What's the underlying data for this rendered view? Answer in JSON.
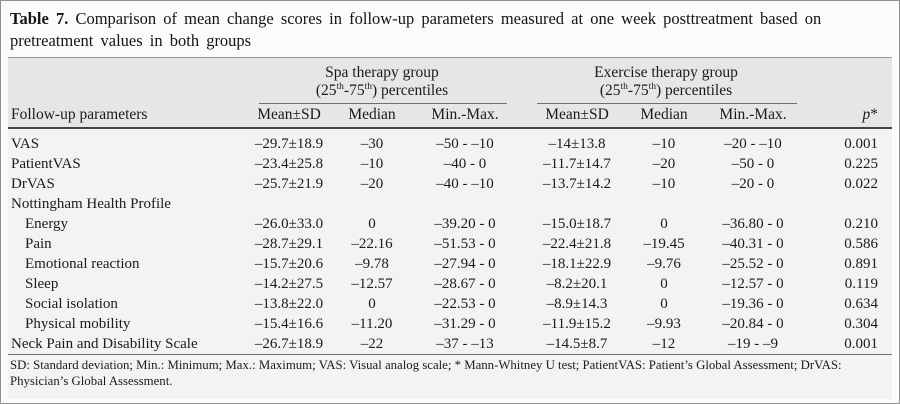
{
  "title": {
    "label": "Table 7.",
    "line1": " Comparison of mean change scores in follow-up parameters measured at one week posttreatment based on",
    "line2": "pretreatment values in both groups"
  },
  "header": {
    "row_label_column": "Follow-up parameters",
    "groups": [
      {
        "name": "Spa therapy group",
        "sub_parts": [
          "(25",
          "th",
          "-75",
          "th",
          ") percentiles"
        ]
      },
      {
        "name": "Exercise therapy group",
        "sub_parts": [
          "(25",
          "th",
          "-75",
          "th",
          ") percentiles"
        ]
      }
    ],
    "sub_columns": [
      "Mean±SD",
      "Median",
      "Min.-Max."
    ],
    "p_parts": [
      "p",
      "*"
    ]
  },
  "rows": [
    {
      "label": "VAS",
      "spa": {
        "mean_sd": "–29.7±18.9",
        "median": "–30",
        "min_max": "–50 - –10"
      },
      "ex": {
        "mean_sd": "–14±13.8",
        "median": "–10",
        "min_max": "–20 - –10"
      },
      "p": "0.001"
    },
    {
      "label": "PatientVAS",
      "spa": {
        "mean_sd": "–23.4±25.8",
        "median": "–10",
        "min_max": "–40 - 0"
      },
      "ex": {
        "mean_sd": "–11.7±14.7",
        "median": "–20",
        "min_max": "–50 - 0"
      },
      "p": "0.225"
    },
    {
      "label": "DrVAS",
      "spa": {
        "mean_sd": "–25.7±21.9",
        "median": "–20",
        "min_max": "–40 - –10"
      },
      "ex": {
        "mean_sd": "–13.7±14.2",
        "median": "–10",
        "min_max": "–20 - 0"
      },
      "p": "0.022"
    },
    {
      "label": "Nottingham Health Profile",
      "spa": {
        "mean_sd": "",
        "median": "",
        "min_max": ""
      },
      "ex": {
        "mean_sd": "",
        "median": "",
        "min_max": ""
      },
      "p": ""
    },
    {
      "label": "Energy",
      "spa": {
        "mean_sd": "–26.0±33.0",
        "median": "0",
        "min_max": "–39.20 - 0"
      },
      "ex": {
        "mean_sd": "–15.0±18.7",
        "median": "0",
        "min_max": "–36.80 - 0"
      },
      "p": "0.210"
    },
    {
      "label": "Pain",
      "spa": {
        "mean_sd": "–28.7±29.1",
        "median": "–22.16",
        "min_max": "–51.53 - 0"
      },
      "ex": {
        "mean_sd": "–22.4±21.8",
        "median": "–19.45",
        "min_max": "–40.31 - 0"
      },
      "p": "0.586"
    },
    {
      "label": "Emotional reaction",
      "spa": {
        "mean_sd": "–15.7±20.6",
        "median": "–9.78",
        "min_max": "–27.94 - 0"
      },
      "ex": {
        "mean_sd": "–18.1±22.9",
        "median": "–9.76",
        "min_max": "–25.52 - 0"
      },
      "p": "0.891"
    },
    {
      "label": "Sleep",
      "spa": {
        "mean_sd": "–14.2±27.5",
        "median": "–12.57",
        "min_max": "–28.67 - 0"
      },
      "ex": {
        "mean_sd": "–8.2±20.1",
        "median": "0",
        "min_max": "–12.57 - 0"
      },
      "p": "0.119"
    },
    {
      "label": "Social isolation",
      "spa": {
        "mean_sd": "–13.8±22.0",
        "median": "0",
        "min_max": "–22.53 - 0"
      },
      "ex": {
        "mean_sd": "–8.9±14.3",
        "median": "0",
        "min_max": "–19.36 - 0"
      },
      "p": "0.634"
    },
    {
      "label": "Physical mobility",
      "spa": {
        "mean_sd": "–15.4±16.6",
        "median": "–11.20",
        "min_max": "–31.29 - 0"
      },
      "ex": {
        "mean_sd": "–11.9±15.2",
        "median": "–9.93",
        "min_max": "–20.84 - 0"
      },
      "p": "0.304"
    },
    {
      "label": "Neck Pain and Disability Scale",
      "spa": {
        "mean_sd": "–26.7±18.9",
        "median": "–22",
        "min_max": "–37 - –13"
      },
      "ex": {
        "mean_sd": "–14.5±8.7",
        "median": "–12",
        "min_max": "–19 - –9"
      },
      "p": "0.001"
    }
  ],
  "footer": {
    "text": "SD: Standard deviation; Min.: Minimum; Max.: Maximum; VAS: Visual analog scale; * Mann-Whitney U test; PatientVAS: Patient’s Global Assessment; DrVAS: Physician’s Global Assessment."
  },
  "colors": {
    "header_band": "#e4e6e7",
    "body_bg": "#f2f3f3",
    "page_bg": "#fbfbfb",
    "rule_dark": "#454545",
    "rule_light": "#6d6f71",
    "border": "#8e9091"
  }
}
